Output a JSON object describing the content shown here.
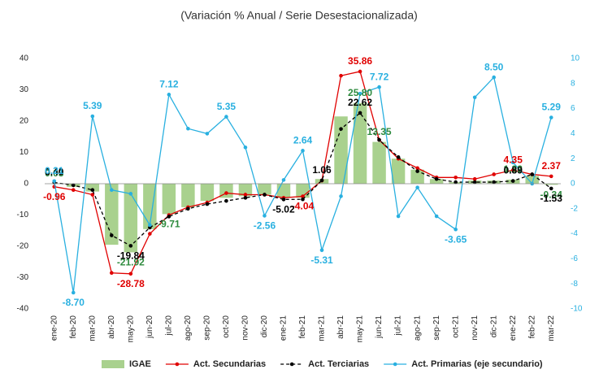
{
  "chart_data": {
    "type": "bar-line",
    "title": "(Variación % Anual / Serie Desestacionalizada)",
    "categories": [
      "ene-20",
      "feb-20",
      "mar-20",
      "abr-20",
      "may-20",
      "jun-20",
      "jul-20",
      "ago-20",
      "sep-20",
      "oct-20",
      "nov-20",
      "dic-20",
      "ene-21",
      "feb-21",
      "mar-21",
      "abr-21",
      "may-21",
      "jun-21",
      "jul-21",
      "ago-21",
      "sep-21",
      "oct-21",
      "nov-21",
      "dic-21",
      "ene-22",
      "feb-22",
      "mar-22"
    ],
    "ylim": [
      -40,
      40
    ],
    "yticks": [
      -40,
      -30,
      -20,
      -10,
      0,
      10,
      20,
      30,
      40
    ],
    "y2lim": [
      -10,
      10
    ],
    "y2ticks": [
      -10,
      -8,
      -6,
      -4,
      -2,
      0,
      2,
      4,
      6,
      8,
      10
    ],
    "series": [
      {
        "name": "IGAE",
        "type": "bar",
        "color": "#a9d18e",
        "label_color": "#2e8b3e",
        "values": [
          0.03,
          -1,
          -2.5,
          -19.5,
          -21.92,
          -14.5,
          -9.71,
          -7.5,
          -5.5,
          -4.5,
          -4,
          -3.5,
          -4.5,
          -4.5,
          1.5,
          21.5,
          25.8,
          13.35,
          8,
          4.5,
          1.5,
          0.5,
          1,
          1,
          1.32,
          2.5,
          -0.34
        ],
        "value_labels": [
          "0.03",
          null,
          null,
          null,
          "-21.92",
          null,
          "-9.71",
          null,
          null,
          null,
          null,
          null,
          null,
          null,
          null,
          null,
          "25.80",
          "13.35",
          null,
          null,
          null,
          null,
          null,
          null,
          "1.32",
          null,
          "-0.34"
        ]
      },
      {
        "name": "Act. Secundarias",
        "type": "line",
        "color": "#e00000",
        "label_color": "#e00000",
        "dash": false,
        "values": [
          -0.96,
          -2,
          -3.5,
          -28.5,
          -28.78,
          -16,
          -10,
          -7.5,
          -6,
          -3,
          -3.5,
          -3.5,
          -4.5,
          -4.04,
          1,
          34.5,
          35.86,
          14,
          8,
          5,
          2,
          2,
          1.5,
          3,
          4.35,
          3,
          2.37
        ],
        "value_labels": [
          "-0.96",
          null,
          null,
          null,
          "-28.78",
          null,
          null,
          null,
          null,
          null,
          null,
          null,
          null,
          "-4.04",
          null,
          null,
          "35.86",
          null,
          null,
          null,
          null,
          null,
          null,
          null,
          "4.35",
          null,
          "2.37"
        ]
      },
      {
        "name": "Act. Terciarias",
        "type": "line",
        "color": "#000000",
        "label_color": "#000000",
        "dash": true,
        "values": [
          0.4,
          -0.5,
          -2,
          -16.5,
          -19.84,
          -14,
          -10.5,
          -8,
          -6.5,
          -5.5,
          -4.5,
          -3.5,
          -5.02,
          -5,
          1.06,
          17.5,
          22.62,
          14,
          8.5,
          4,
          1.5,
          0.5,
          0.5,
          0.5,
          0.89,
          3,
          -1.53
        ],
        "value_labels": [
          "0.40",
          null,
          null,
          null,
          "-19.84",
          null,
          null,
          null,
          null,
          null,
          null,
          null,
          "-5.02",
          null,
          "1.06",
          null,
          "22.62",
          null,
          null,
          null,
          null,
          null,
          null,
          null,
          "0.89",
          null,
          "-1.53"
        ]
      },
      {
        "name": "Act. Primarias (eje secundario)",
        "type": "line",
        "axis": "y2",
        "color": "#29b0e0",
        "label_color": "#29b0e0",
        "dash": false,
        "values": [
          0.21,
          -8.7,
          5.39,
          -0.5,
          -0.8,
          -3.3,
          7.12,
          4.4,
          4.0,
          5.35,
          2.9,
          -2.56,
          0.3,
          2.64,
          -5.31,
          -1.0,
          7.2,
          7.72,
          -2.6,
          -0.3,
          -2.6,
          -3.65,
          6.9,
          8.5,
          1.7,
          0,
          5.29
        ],
        "value_labels": [
          "0.21",
          "-8.70",
          "5.39",
          null,
          null,
          null,
          "7.12",
          null,
          null,
          "5.35",
          null,
          "-2.56",
          null,
          "2.64",
          "-5.31",
          null,
          null,
          "7.72",
          null,
          null,
          null,
          "-3.65",
          null,
          "8.50",
          null,
          null,
          "5.29"
        ]
      }
    ]
  }
}
